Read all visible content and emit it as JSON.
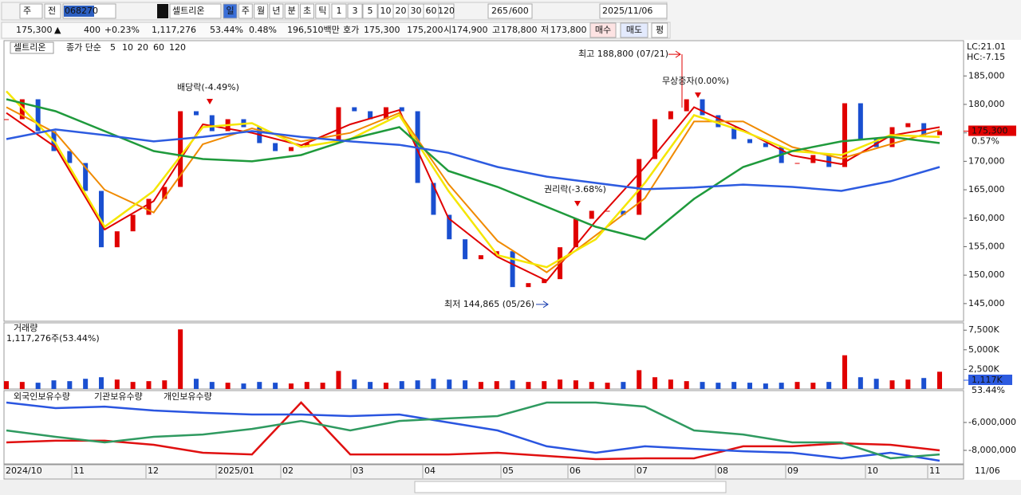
{
  "toolbar": {
    "market": "주",
    "prev": "전",
    "code": "068270",
    "badge": "신",
    "name": "셀트리온",
    "periods": [
      "일",
      "주",
      "월",
      "년",
      "분",
      "초",
      "틱"
    ],
    "intervals": [
      "1",
      "3",
      "5",
      "10",
      "20",
      "30",
      "60",
      "120"
    ],
    "count": "265",
    "max": "/600",
    "date": "2025/11/06"
  },
  "info_bar": {
    "price": "175,300",
    "arrow": "▲",
    "change": "400",
    "change_pct": "+0.23%",
    "volume": "1,117,276",
    "volume_ratio": "53.44%",
    "turnover": "0.48%",
    "amount": "196,510백만",
    "quote_label": "호가",
    "ask": "175,300",
    "bid": "175,200",
    "open_label": "시",
    "open": "174,900",
    "high_label": "고",
    "high": "178,800",
    "low_label": "저",
    "low": "173,800",
    "buy": "매수",
    "sell": "매도",
    "avg": "평"
  },
  "chart_data": [
    {
      "type": "candlestick",
      "title": "셀트리온",
      "legend_title": "종가 단순",
      "up_color": "#e00000",
      "down_color": "#1a4fd0",
      "values": [
        177400,
        180900,
        175300,
        171800,
        169700,
        164800,
        154900,
        157700,
        160600,
        163400,
        165500,
        178800,
        178100,
        175300,
        177400,
        176000,
        173200,
        171800,
        172500,
        173200,
        173200,
        179500,
        178800,
        177400,
        179500,
        178800,
        166200,
        160600,
        156300,
        152800,
        153500,
        154200,
        147900,
        148600,
        149300,
        154900,
        159900,
        161300,
        161300,
        160600,
        170400,
        177400,
        178800,
        180900,
        178100,
        176000,
        173900,
        173200,
        172500,
        169700,
        169700,
        171100,
        169000,
        180200,
        173900,
        172500,
        176000,
        176700,
        174600,
        175300
      ],
      "series": [
        {
          "name": "5",
          "color": "#e00000",
          "values": [
            178500,
            172500,
            158000,
            163000,
            176500,
            175000,
            172800,
            176500,
            179000,
            160000,
            153200,
            149000,
            159500,
            169000,
            179500,
            175500,
            171000,
            169500,
            174500,
            176000
          ]
        },
        {
          "name": "10",
          "color": "#f08a00",
          "values": [
            179500,
            175000,
            165000,
            161000,
            173000,
            175800,
            173500,
            175000,
            178500,
            166000,
            156000,
            150500,
            157000,
            163500,
            177000,
            177000,
            172500,
            170500,
            173000,
            175500
          ]
        },
        {
          "name": "20",
          "color": "#f5e600",
          "values": [
            182300,
            173200,
            158500,
            164800,
            176000,
            176700,
            172500,
            173900,
            178100,
            164800,
            153500,
            151400,
            156300,
            166200,
            178100,
            175300,
            171800,
            171100,
            174600,
            174300
          ]
        },
        {
          "name": "60",
          "color": "#1f9a3c",
          "values": [
            180900,
            178800,
            175300,
            171800,
            170400,
            170000,
            171100,
            173900,
            176000,
            168300,
            165500,
            162000,
            158500,
            156300,
            163400,
            169000,
            171800,
            173500,
            174300,
            173200
          ]
        },
        {
          "name": "120",
          "color": "#2d5be0",
          "values": [
            173900,
            175600,
            174600,
            173500,
            174300,
            175300,
            174300,
            173500,
            172900,
            171500,
            169000,
            167300,
            166200,
            165100,
            165400,
            165900,
            165500,
            164800,
            166500,
            169000
          ]
        }
      ],
      "ylim": [
        141900,
        191200
      ],
      "yticks": [
        {
          "value": 185000,
          "label": "185,000"
        },
        {
          "value": 180000,
          "label": "180,000"
        },
        {
          "value": 175000,
          "label": "175,000"
        },
        {
          "value": 170000,
          "label": "170,000"
        },
        {
          "value": 165000,
          "label": "165,000"
        },
        {
          "value": 160000,
          "label": "160,000"
        },
        {
          "value": 155000,
          "label": "155,000"
        },
        {
          "value": 150000,
          "label": "150,000"
        },
        {
          "value": 145000,
          "label": "145,000"
        }
      ],
      "high": {
        "value": 188800,
        "label": "최고 188,800 (07/21)"
      },
      "low": {
        "value": 144865,
        "label": "최저 144,865 (05/26)"
      },
      "events": [
        "배당락(-4.49%)",
        "권리락(-3.68%)",
        "무상증자(0.00%)"
      ],
      "last_price": {
        "value": 175300,
        "label": "175,300"
      },
      "last_pct": "0.57%",
      "lc": "LC:21.01",
      "hc": "HC:-7.15"
    },
    {
      "type": "bar",
      "title": "거래량",
      "subtitle": "1,117,276주(53.44%)",
      "values": [
        1000000,
        900000,
        800000,
        1100000,
        1000000,
        1300000,
        1500000,
        1200000,
        900000,
        1000000,
        1100000,
        7600000,
        1300000,
        900000,
        800000,
        700000,
        900000,
        800000,
        700000,
        900000,
        800000,
        2300000,
        1200000,
        900000,
        800000,
        1000000,
        1100000,
        1300000,
        1200000,
        1100000,
        900000,
        1000000,
        1100000,
        900000,
        1000000,
        1200000,
        1100000,
        900000,
        800000,
        900000,
        2400000,
        1500000,
        1200000,
        1000000,
        900000,
        800000,
        900000,
        800000,
        700000,
        800000,
        900000,
        800000,
        900000,
        4300000,
        1500000,
        1300000,
        1100000,
        1200000,
        1400000,
        2200000
      ],
      "ylim": [
        0,
        8437500
      ],
      "yticks": [
        {
          "value": 7500000,
          "label": "7,500K"
        },
        {
          "value": 5000000,
          "label": "5,000K"
        },
        {
          "value": 2500000,
          "label": "2,500K"
        }
      ],
      "last": {
        "value": 1117000,
        "label": "1,117K"
      },
      "last_pct": "53.44%"
    },
    {
      "type": "line",
      "series": [
        {
          "name": "외국인보유수량",
          "color": "#e01010",
          "values": [
            -7430000,
            -7310000,
            -7310000,
            -7600000,
            -8170000,
            -8290000,
            -4570000,
            -8290000,
            -8290000,
            -8290000,
            -8170000,
            -8400000,
            -8630000,
            -8570000,
            -8570000,
            -7710000,
            -7710000,
            -7490000,
            -7600000,
            -8000000
          ]
        },
        {
          "name": "기관보유수량",
          "color": "#2a55e0",
          "values": [
            -4570000,
            -4970000,
            -4860000,
            -5140000,
            -5310000,
            -5430000,
            -5430000,
            -5540000,
            -5430000,
            -6000000,
            -6570000,
            -7710000,
            -8170000,
            -7710000,
            -7890000,
            -8060000,
            -8170000,
            -8570000,
            -8170000,
            -8740000
          ]
        },
        {
          "name": "개인보유수량",
          "color": "#2f9a60",
          "values": [
            -6570000,
            -7030000,
            -7430000,
            -7030000,
            -6860000,
            -6460000,
            -5890000,
            -6570000,
            -5890000,
            -5710000,
            -5540000,
            -4570000,
            -4570000,
            -4860000,
            -6570000,
            -6860000,
            -7430000,
            -7430000,
            -8570000,
            -8290000
          ]
        }
      ],
      "ylim": [
        -8971000,
        -3714000
      ],
      "yticks": [
        {
          "value": -6000000,
          "label": "-6,000,000"
        },
        {
          "value": -8000000,
          "label": "-8,000,000"
        }
      ]
    }
  ],
  "x_axis": {
    "labels": [
      "2024/10",
      "11",
      "12",
      "2025/01",
      "02",
      "03",
      "04",
      "05",
      "06",
      "07",
      "08",
      "09",
      "10",
      "11"
    ],
    "last_date": "11/06"
  }
}
